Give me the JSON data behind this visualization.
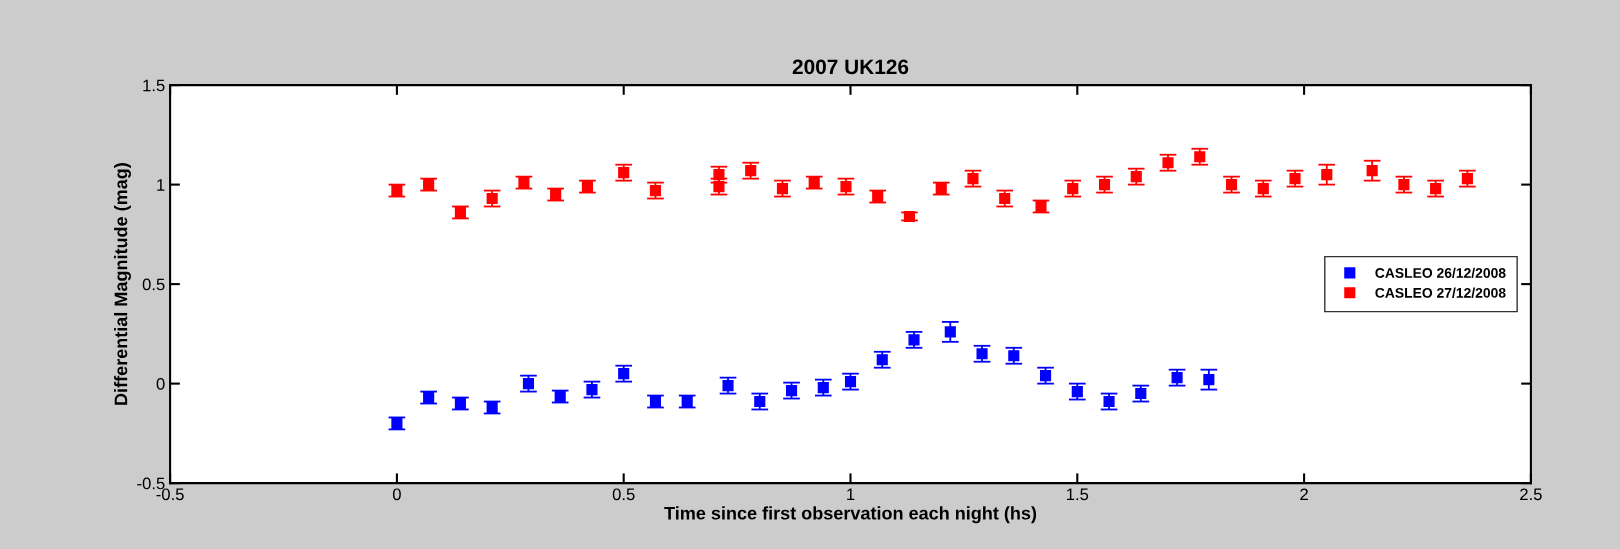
{
  "chart_data": {
    "type": "scatter",
    "title": "2007 UK126",
    "xlabel": "Time since first observation each night (hs)",
    "ylabel": "Differential Magnitude (mag)",
    "xlim": [
      -0.5,
      2.5
    ],
    "xticks": [
      -0.5,
      0,
      0.5,
      1,
      1.5,
      2,
      2.5
    ],
    "ylim": [
      -0.5,
      1.5
    ],
    "yticks": [
      -0.5,
      0,
      0.5,
      1,
      1.5
    ],
    "marker": "square",
    "legend": "right",
    "grid": false,
    "series": [
      {
        "name": "CASLEO 26/12/2008",
        "color": "#0000ff",
        "x": [
          0,
          0.07,
          0.14,
          0.21,
          0.29,
          0.36,
          0.43,
          0.5,
          0.57,
          0.64,
          0.73,
          0.8,
          0.87,
          0.94,
          1.0,
          1.07,
          1.14,
          1.22,
          1.29,
          1.36,
          1.43,
          1.5,
          1.57,
          1.64,
          1.72,
          1.79
        ],
        "values": [
          -0.2,
          -0.07,
          -0.1,
          -0.12,
          0.0,
          -0.065,
          -0.03,
          0.05,
          -0.09,
          -0.09,
          -0.01,
          -0.09,
          -0.035,
          -0.02,
          0.01,
          0.12,
          0.22,
          0.26,
          0.15,
          0.14,
          0.04,
          -0.04,
          -0.09,
          -0.05,
          0.03,
          0.02
        ],
        "errors": [
          0.03,
          0.03,
          0.03,
          0.03,
          0.04,
          0.03,
          0.04,
          0.04,
          0.03,
          0.03,
          0.04,
          0.04,
          0.04,
          0.04,
          0.04,
          0.04,
          0.04,
          0.05,
          0.04,
          0.04,
          0.04,
          0.04,
          0.04,
          0.04,
          0.04,
          0.05
        ]
      },
      {
        "name": "CASLEO 27/12/2008",
        "color": "#ff0000",
        "x": [
          0,
          0.07,
          0.14,
          0.21,
          0.28,
          0.35,
          0.42,
          0.5,
          0.57,
          0.71,
          0.71,
          0.78,
          0.85,
          0.92,
          0.99,
          1.06,
          1.13,
          1.2,
          1.27,
          1.34,
          1.42,
          1.49,
          1.56,
          1.63,
          1.7,
          1.77,
          1.84,
          1.91,
          1.98,
          2.05,
          2.15,
          2.22,
          2.29,
          2.36
        ],
        "values": [
          0.97,
          1.0,
          0.86,
          0.93,
          1.01,
          0.95,
          0.99,
          1.06,
          0.97,
          0.99,
          1.05,
          1.07,
          0.98,
          1.01,
          0.99,
          0.94,
          0.84,
          0.98,
          1.03,
          0.93,
          0.89,
          0.98,
          1.0,
          1.04,
          1.11,
          1.14,
          1.0,
          0.98,
          1.03,
          1.05,
          1.07,
          1.0,
          0.98,
          1.03
        ],
        "errors": [
          0.03,
          0.03,
          0.03,
          0.04,
          0.03,
          0.03,
          0.03,
          0.04,
          0.04,
          0.04,
          0.04,
          0.04,
          0.04,
          0.03,
          0.04,
          0.03,
          0.02,
          0.03,
          0.04,
          0.04,
          0.03,
          0.04,
          0.04,
          0.04,
          0.04,
          0.04,
          0.04,
          0.04,
          0.04,
          0.05,
          0.05,
          0.04,
          0.04,
          0.04
        ]
      }
    ]
  }
}
